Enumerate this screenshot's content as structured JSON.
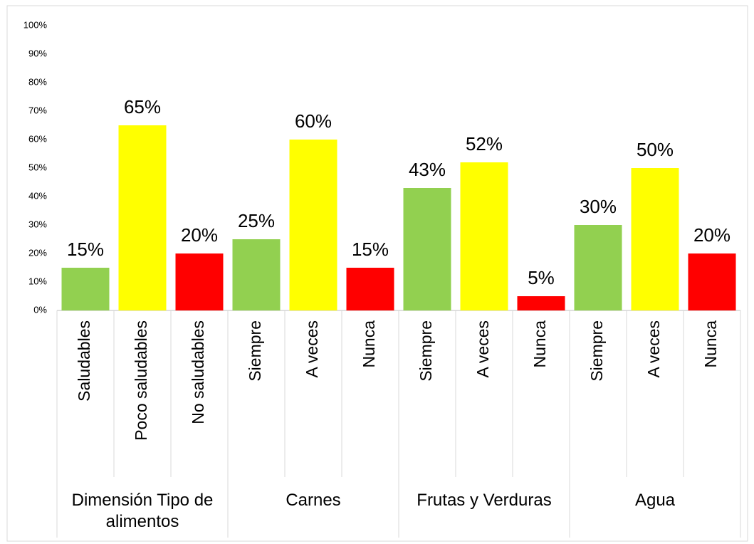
{
  "chart_data": {
    "type": "bar",
    "groups": [
      {
        "name": "Dimensión Tipo de alimentos",
        "categories": [
          "Saludables",
          "Poco saludables",
          "No saludables"
        ]
      },
      {
        "name": "Carnes",
        "categories": [
          "Siempre",
          "A veces",
          "Nunca"
        ]
      },
      {
        "name": "Frutas y Verduras",
        "categories": [
          "Siempre",
          "A veces",
          "Nunca"
        ]
      },
      {
        "name": "Agua",
        "categories": [
          "Siempre",
          "A veces",
          "Nunca"
        ]
      }
    ],
    "values": [
      15,
      65,
      20,
      25,
      60,
      15,
      43,
      52,
      5,
      30,
      50,
      20
    ],
    "value_labels": [
      "15%",
      "65%",
      "20%",
      "25%",
      "60%",
      "15%",
      "43%",
      "52%",
      "5%",
      "30%",
      "50%",
      "20%"
    ],
    "colors": [
      "#92d050",
      "#ffff00",
      "#ff0000",
      "#92d050",
      "#ffff00",
      "#ff0000",
      "#92d050",
      "#ffff00",
      "#ff0000",
      "#92d050",
      "#ffff00",
      "#ff0000"
    ],
    "ylim": [
      0,
      100
    ],
    "yticks": [
      {
        "value": 0,
        "label": "0%"
      },
      {
        "value": 10,
        "label": "10%"
      },
      {
        "value": 20,
        "label": "20%"
      },
      {
        "value": 30,
        "label": "30%"
      },
      {
        "value": 40,
        "label": "40%"
      },
      {
        "value": 50,
        "label": "50%"
      },
      {
        "value": 60,
        "label": "60%"
      },
      {
        "value": 70,
        "label": "70%"
      },
      {
        "value": 80,
        "label": "80%"
      },
      {
        "value": 90,
        "label": "90%"
      },
      {
        "value": 100,
        "label": "100%"
      }
    ]
  }
}
